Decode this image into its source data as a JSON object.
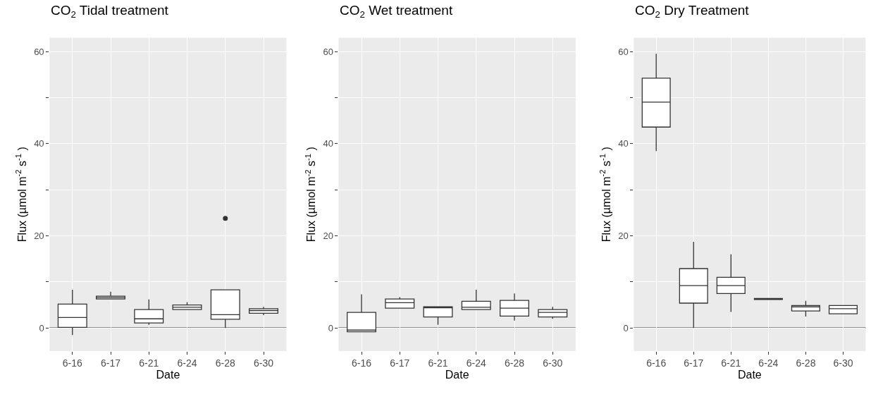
{
  "chart_data": [
    {
      "type": "box",
      "title": "CO$_{2}$ Tidal treatment",
      "xlabel": "Date",
      "ylabel": "Flux (µmol m$^{-2}$ s$^{-1}$ )",
      "categories": [
        "6-16",
        "6-17",
        "6-21",
        "6-24",
        "6-28",
        "6-30"
      ],
      "boxes": [
        {
          "low": -1.5,
          "q1": 0.15,
          "median": 2.3,
          "q3": 5.2,
          "high": 8.3
        },
        {
          "low": 6.3,
          "q1": 6.3,
          "median": 6.6,
          "q3": 6.9,
          "high": 7.9
        },
        {
          "low": 0.7,
          "q1": 1.1,
          "median": 2.0,
          "q3": 4.0,
          "high": 6.2
        },
        {
          "low": 4.0,
          "q1": 4.0,
          "median": 4.5,
          "q3": 5.0,
          "high": 5.6
        },
        {
          "low": 0,
          "q1": 1.9,
          "median": 2.9,
          "q3": 8.3,
          "high": 8.3,
          "outliers": [
            23.8
          ]
        },
        {
          "low": 2.8,
          "q1": 3.2,
          "median": 3.8,
          "q3": 4.2,
          "high": 4.6
        }
      ],
      "ylim": [
        -5,
        63
      ],
      "yticks": [
        0,
        {
          "value": 10,
          "label": null
        },
        20,
        {
          "value": 30,
          "label": null
        },
        40,
        {
          "value": 50,
          "label": null
        },
        60
      ],
      "grid": true,
      "ref_lines": [
        {
          "axis": "y",
          "value": 0
        }
      ]
    },
    {
      "type": "box",
      "title": "CO$_{2}$ Wet treatment",
      "xlabel": "Date",
      "ylabel": "Flux (µmol m$^{-2}$ s$^{-1}$ )",
      "categories": [
        "6-16",
        "6-17",
        "6-21",
        "6-24",
        "6-28",
        "6-30"
      ],
      "boxes": [
        {
          "low": -0.8,
          "q1": -0.8,
          "median": -0.45,
          "q3": 3.4,
          "high": 7.3
        },
        {
          "low": 4.3,
          "q1": 4.3,
          "median": 5.5,
          "q3": 6.3,
          "high": 6.7
        },
        {
          "low": 0.7,
          "q1": 2.4,
          "median": 4.4,
          "q3": 4.6,
          "high": 4.6
        },
        {
          "low": 4.0,
          "q1": 4.0,
          "median": 4.5,
          "q3": 5.8,
          "high": 8.3
        },
        {
          "low": 1.6,
          "q1": 2.6,
          "median": 4.3,
          "q3": 6.0,
          "high": 7.5
        },
        {
          "low": 2.0,
          "q1": 2.4,
          "median": 3.4,
          "q3": 4.0,
          "high": 4.6
        }
      ],
      "ylim": [
        -5,
        63
      ],
      "yticks": [
        0,
        {
          "value": 10,
          "label": null
        },
        20,
        {
          "value": 30,
          "label": null
        },
        40,
        {
          "value": 50,
          "label": null
        },
        60
      ],
      "grid": true,
      "ref_lines": [
        {
          "axis": "y",
          "value": 0
        }
      ]
    },
    {
      "type": "box",
      "title": "CO$_{2}$ Dry Treatment",
      "xlabel": "Date",
      "ylabel": "Flux (µmol m$^{-2}$ s$^{-1}$ )",
      "categories": [
        "6-16",
        "6-17",
        "6-21",
        "6-24",
        "6-28",
        "6-30"
      ],
      "boxes": [
        {
          "low": 38.4,
          "q1": 43.6,
          "median": 49.0,
          "q3": 54.2,
          "high": 59.5
        },
        {
          "low": 0,
          "q1": 5.4,
          "median": 9.2,
          "q3": 12.9,
          "high": 18.7
        },
        {
          "low": 3.5,
          "q1": 7.5,
          "median": 9.2,
          "q3": 11.0,
          "high": 16.0
        },
        {
          "low": 6.2,
          "q1": 6.2,
          "median": 6.3,
          "q3": 6.4,
          "high": 6.4
        },
        {
          "low": 2.5,
          "q1": 3.7,
          "median": 4.6,
          "q3": 4.9,
          "high": 5.9
        },
        {
          "low": 3.1,
          "q1": 3.1,
          "median": 4.2,
          "q3": 4.9,
          "high": 4.9
        }
      ],
      "ylim": [
        -5,
        63
      ],
      "yticks": [
        0,
        {
          "value": 10,
          "label": null
        },
        20,
        {
          "value": 30,
          "label": null
        },
        40,
        {
          "value": 50,
          "label": null
        },
        60
      ],
      "grid": true,
      "ref_lines": [
        {
          "axis": "y",
          "value": 0
        }
      ]
    }
  ]
}
